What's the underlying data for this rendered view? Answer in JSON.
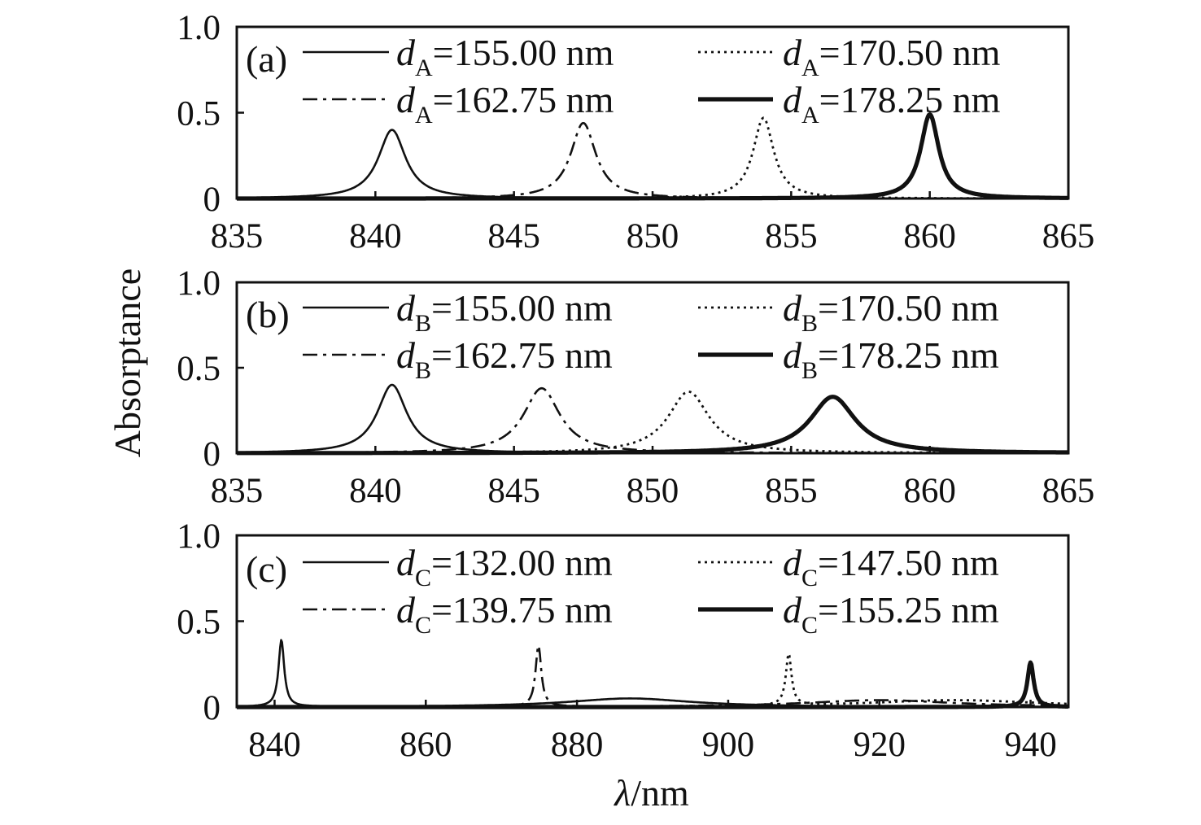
{
  "figure": {
    "ylabel": "Absorptance",
    "xlabel": "λ/nm",
    "xlabel_symbol": "λ",
    "xlabel_unit": "/nm"
  },
  "chart_data": [
    {
      "type": "line",
      "panel_label": "(a)",
      "title": "",
      "xlabel": "",
      "ylabel": "Absorptance",
      "xlim": [
        835,
        865
      ],
      "ylim": [
        0,
        1.0
      ],
      "xticks": [
        835,
        840,
        845,
        850,
        855,
        860,
        865
      ],
      "xtick_labels": [
        "835",
        "840",
        "845",
        "850",
        "855",
        "860",
        "865"
      ],
      "yticks": [
        0,
        0.5,
        1.0
      ],
      "ytick_labels": [
        "0",
        "0.5",
        "1.0"
      ],
      "grid": false,
      "legend_position": "top",
      "series": [
        {
          "var": "d",
          "sub": "A",
          "label_value": "=155.00 nm",
          "style": "solid-thin",
          "peaks": [
            [
              840.6,
              0.4,
              0.6
            ]
          ]
        },
        {
          "var": "d",
          "sub": "A",
          "label_value": "=162.75 nm",
          "style": "dashdot",
          "peaks": [
            [
              847.5,
              0.44,
              0.55
            ]
          ]
        },
        {
          "var": "d",
          "sub": "A",
          "label_value": "=170.50 nm",
          "style": "dotted",
          "peaks": [
            [
              854.0,
              0.47,
              0.45
            ]
          ]
        },
        {
          "var": "d",
          "sub": "A",
          "label_value": "=178.25 nm",
          "style": "solid-thick",
          "peaks": [
            [
              860.0,
              0.49,
              0.4
            ]
          ]
        }
      ]
    },
    {
      "type": "line",
      "panel_label": "(b)",
      "title": "",
      "xlabel": "",
      "ylabel": "Absorptance",
      "xlim": [
        835,
        865
      ],
      "ylim": [
        0,
        1.0
      ],
      "xticks": [
        835,
        840,
        845,
        850,
        855,
        860,
        865
      ],
      "xtick_labels": [
        "835",
        "840",
        "845",
        "850",
        "855",
        "860",
        "865"
      ],
      "yticks": [
        0,
        0.5,
        1.0
      ],
      "ytick_labels": [
        "0",
        "0.5",
        "1.0"
      ],
      "grid": false,
      "legend_position": "top",
      "series": [
        {
          "var": "d",
          "sub": "B",
          "label_value": "=155.00 nm",
          "style": "solid-thin",
          "peaks": [
            [
              840.6,
              0.4,
              0.65
            ]
          ]
        },
        {
          "var": "d",
          "sub": "B",
          "label_value": "=162.75 nm",
          "style": "dashdot",
          "peaks": [
            [
              846.0,
              0.38,
              0.8
            ]
          ]
        },
        {
          "var": "d",
          "sub": "B",
          "label_value": "=170.50 nm",
          "style": "dotted",
          "peaks": [
            [
              851.3,
              0.36,
              0.9
            ]
          ]
        },
        {
          "var": "d",
          "sub": "B",
          "label_value": "=178.25 nm",
          "style": "solid-thick",
          "peaks": [
            [
              856.5,
              0.33,
              1.0
            ]
          ]
        }
      ]
    },
    {
      "type": "line",
      "panel_label": "(c)",
      "title": "",
      "xlabel": "λ/nm",
      "ylabel": "Absorptance",
      "xlim": [
        835,
        945
      ],
      "ylim": [
        0,
        1.0
      ],
      "xticks": [
        840,
        860,
        880,
        900,
        920,
        940
      ],
      "xtick_labels": [
        "840",
        "860",
        "880",
        "900",
        "920",
        "940"
      ],
      "yticks": [
        0,
        0.5,
        1.0
      ],
      "ytick_labels": [
        "0",
        "0.5",
        "1.0"
      ],
      "grid": false,
      "legend_position": "top",
      "series": [
        {
          "var": "d",
          "sub": "C",
          "label_value": "=132.00 nm",
          "style": "solid-thin",
          "peaks": [
            [
              840.9,
              0.39,
              0.45
            ],
            [
              887.0,
              0.05,
              10.0
            ]
          ]
        },
        {
          "var": "d",
          "sub": "C",
          "label_value": "=139.75 nm",
          "style": "dashdot",
          "peaks": [
            [
              874.9,
              0.36,
              0.45
            ],
            [
              920.0,
              0.04,
              12.0
            ]
          ]
        },
        {
          "var": "d",
          "sub": "C",
          "label_value": "=147.50 nm",
          "style": "dotted",
          "peaks": [
            [
              908.0,
              0.3,
              0.45
            ],
            [
              930.0,
              0.04,
              14.0
            ]
          ]
        },
        {
          "var": "d",
          "sub": "C",
          "label_value": "=155.25 nm",
          "style": "solid-thick",
          "peaks": [
            [
              940.0,
              0.26,
              0.5
            ]
          ]
        }
      ]
    }
  ]
}
